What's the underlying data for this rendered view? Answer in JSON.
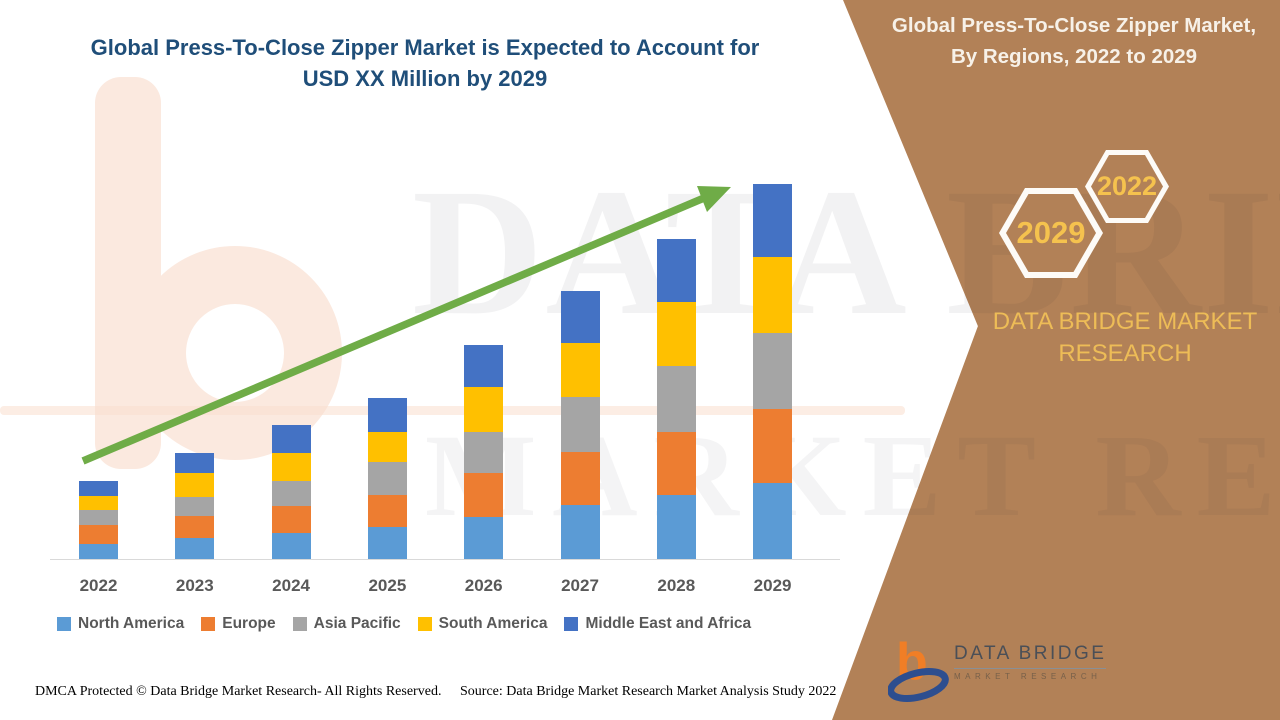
{
  "header": {
    "title": "Global Press-To-Close Zipper Market is Expected to Account for USD XX Million by 2029",
    "title_color": "#1F4E79"
  },
  "side_panel": {
    "title": "Global Press-To-Close Zipper Market, By Regions, 2022 to 2029",
    "title_color": "#F7F1E8",
    "panel_color": "#B28157",
    "badges": [
      {
        "label": "2029"
      },
      {
        "label": "2022"
      }
    ],
    "badge_text_color": "#F5C24E",
    "brand_text": "DATA BRIDGE MARKET RESEARCH",
    "brand_text_color": "#EDBC57"
  },
  "watermark": {
    "line1": "DATA BRIDGE",
    "line2": "MARKET RESEARCH"
  },
  "chart_data": {
    "type": "bar",
    "stacked": true,
    "title": "Global Press-To-Close Zipper Market is Expected to Account for USD XX Million by 2029",
    "xlabel": "",
    "ylabel": "",
    "values_note": "No value axis shown; series values are relative size estimates (USD XX Million not disclosed)",
    "categories": [
      "2022",
      "2023",
      "2024",
      "2025",
      "2026",
      "2027",
      "2028",
      "2029"
    ],
    "series": [
      {
        "name": "North America",
        "color": "#5B9BD5",
        "values": [
          15,
          21,
          26,
          32,
          42,
          54,
          64,
          76
        ]
      },
      {
        "name": "Europe",
        "color": "#ED7D31",
        "values": [
          19,
          22,
          27,
          32,
          44,
          53,
          63,
          74
        ]
      },
      {
        "name": "Asia Pacific",
        "color": "#A5A5A5",
        "values": [
          15,
          19,
          25,
          33,
          41,
          55,
          66,
          76
        ]
      },
      {
        "name": "South America",
        "color": "#FFC000",
        "values": [
          14,
          24,
          28,
          30,
          45,
          54,
          64,
          76
        ]
      },
      {
        "name": "Middle East and Africa",
        "color": "#4472C4",
        "values": [
          15,
          20,
          28,
          34,
          42,
          52,
          63,
          73
        ]
      }
    ],
    "totals": [
      78,
      106,
      134,
      161,
      214,
      268,
      320,
      375
    ],
    "legend_position": "bottom",
    "grid": false,
    "trend_arrow": true,
    "arrow_color": "#6FAC47",
    "axis_line_color": "#D9D9D9"
  },
  "footer": {
    "left": "DMCA Protected © Data Bridge Market Research- All Rights Reserved.",
    "right": "Source: Data Bridge Market Research Market Analysis Study 2022"
  },
  "logo": {
    "name": "DATA BRIDGE",
    "subtext": "MARKET RESEARCH"
  }
}
